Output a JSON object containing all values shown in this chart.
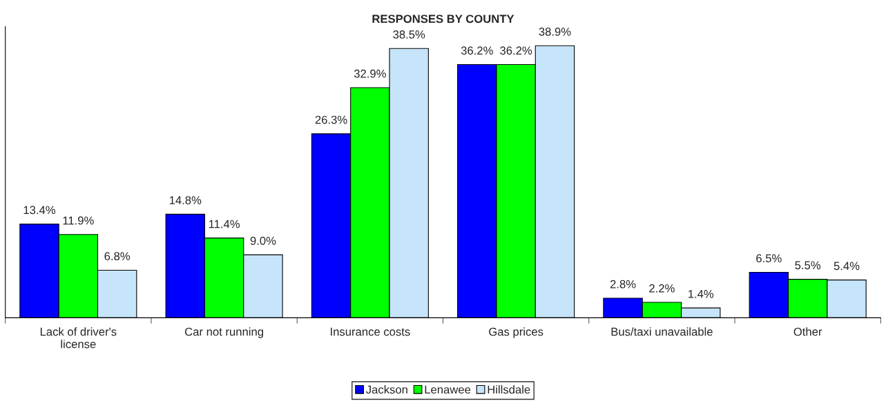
{
  "chart_data": {
    "type": "bar",
    "title": "RESPONSES BY COUNTY",
    "categories": [
      "Lack of driver's\nlicense",
      "Car not running",
      "Insurance costs",
      "Gas prices",
      "Bus/taxi unavailable",
      "Other"
    ],
    "series": [
      {
        "name": "Jackson",
        "color": "#0000ff",
        "values": [
          13.4,
          14.8,
          26.3,
          36.2,
          2.8,
          6.5
        ],
        "value_labels": [
          "13.4%",
          "14.8%",
          "26.3%",
          "36.2%",
          "2.8%",
          "6.5%"
        ]
      },
      {
        "name": "Lenawee",
        "color": "#00ff00",
        "values": [
          11.9,
          11.4,
          32.9,
          36.2,
          2.2,
          5.5
        ],
        "value_labels": [
          "11.9%",
          "11.4%",
          "32.9%",
          "36.2%",
          "2.2%",
          "5.5%"
        ]
      },
      {
        "name": "Hillsdale",
        "color": "#c6e4fa",
        "values": [
          6.8,
          9.0,
          38.5,
          38.9,
          1.4,
          5.4
        ],
        "value_labels": [
          "6.8%",
          "9.0%",
          "38.5%",
          "38.9%",
          "1.4%",
          "5.4%"
        ]
      }
    ],
    "grid": false,
    "legend": "bottom"
  }
}
